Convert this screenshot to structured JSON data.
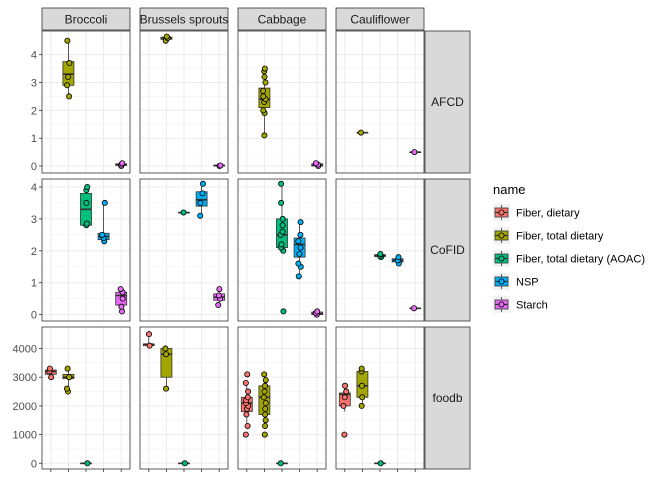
{
  "chart_data": {
    "type": "boxplot",
    "columns": [
      "Broccoli",
      "Brussels sprouts",
      "Cabbage",
      "Cauliflower"
    ],
    "rows": [
      "AFCD",
      "CoFID",
      "foodb"
    ],
    "categories": [
      "Fiber, dietary",
      "Fiber, total dietary",
      "Fiber, total dietary (AOAC)",
      "NSP",
      "Starch"
    ],
    "colors": {
      "Fiber, dietary": "#F8766D",
      "Fiber, total dietary": "#A3A500",
      "Fiber, total dietary (AOAC)": "#00BF7D",
      "NSP": "#00B0F6",
      "Starch": "#E76BF3"
    },
    "scales": "free_y",
    "grid": "on",
    "legend_position": "right",
    "legend": {
      "title": "name",
      "entries": [
        "Fiber, dietary",
        "Fiber, total dietary",
        "Fiber, total dietary (AOAC)",
        "NSP",
        "Starch"
      ]
    },
    "row_axes": {
      "AFCD": {
        "ylim": [
          -0.25,
          4.85
        ],
        "ticks": [
          "0",
          "1",
          "2",
          "3",
          "4"
        ]
      },
      "CoFID": {
        "ylim": [
          -0.2,
          4.25
        ],
        "ticks": [
          "0",
          "1",
          "2",
          "3",
          "4"
        ]
      },
      "foodb": {
        "ylim": [
          -200,
          4750
        ],
        "ticks": [
          "0",
          "1000",
          "2000",
          "3000",
          "4000"
        ]
      }
    },
    "groups": [
      {
        "row": "AFCD",
        "col": "Broccoli",
        "category": "Fiber, total dietary",
        "stats": [
          2.5,
          2.9,
          3.3,
          3.75,
          4.5
        ],
        "points": [
          2.5,
          2.9,
          3.2,
          3.7,
          4.5
        ]
      },
      {
        "row": "AFCD",
        "col": "Broccoli",
        "category": "Starch",
        "stats": [
          0.0,
          0.02,
          0.05,
          0.08,
          0.12
        ],
        "points": [
          0.0,
          0.05,
          0.1
        ]
      },
      {
        "row": "AFCD",
        "col": "Brussels sprouts",
        "category": "Fiber, total dietary",
        "stats": [
          4.5,
          4.55,
          4.6,
          4.63,
          4.65
        ],
        "points": [
          4.5,
          4.6,
          4.65
        ]
      },
      {
        "row": "AFCD",
        "col": "Brussels sprouts",
        "category": "Starch",
        "stats": [
          0.0,
          0.0,
          0.02,
          0.03,
          0.04
        ],
        "points": [
          0.0,
          0.02
        ]
      },
      {
        "row": "AFCD",
        "col": "Cabbage",
        "category": "Fiber, total dietary",
        "stats": [
          1.1,
          2.1,
          2.4,
          2.8,
          3.5
        ],
        "points": [
          1.1,
          1.9,
          2.0,
          2.3,
          2.4,
          2.5,
          2.7,
          3.0,
          3.2,
          3.4,
          3.5
        ]
      },
      {
        "row": "AFCD",
        "col": "Cabbage",
        "category": "Starch",
        "stats": [
          0.0,
          0.0,
          0.03,
          0.08,
          0.12
        ],
        "points": [
          0.0,
          0.05,
          0.1
        ]
      },
      {
        "row": "AFCD",
        "col": "Cauliflower",
        "category": "Fiber, total dietary",
        "stats": [
          1.2,
          1.2,
          1.2,
          1.2,
          1.2
        ],
        "points": [
          1.2
        ]
      },
      {
        "row": "AFCD",
        "col": "Cauliflower",
        "category": "Starch",
        "stats": [
          0.5,
          0.5,
          0.5,
          0.5,
          0.5
        ],
        "points": [
          0.5
        ]
      },
      {
        "row": "CoFID",
        "col": "Broccoli",
        "category": "Fiber, total dietary (AOAC)",
        "stats": [
          2.8,
          2.8,
          3.3,
          3.8,
          4.0
        ],
        "points": [
          2.8,
          2.85,
          3.5,
          3.9,
          4.0
        ]
      },
      {
        "row": "CoFID",
        "col": "Broccoli",
        "category": "NSP",
        "stats": [
          2.3,
          2.35,
          2.45,
          2.55,
          3.5
        ],
        "points": [
          2.3,
          2.4,
          2.5,
          3.5
        ]
      },
      {
        "row": "CoFID",
        "col": "Broccoli",
        "category": "Starch",
        "stats": [
          0.1,
          0.3,
          0.6,
          0.7,
          0.8
        ],
        "points": [
          0.1,
          0.25,
          0.5,
          0.7,
          0.8
        ]
      },
      {
        "row": "CoFID",
        "col": "Brussels sprouts",
        "category": "Fiber, total dietary (AOAC)",
        "stats": [
          3.2,
          3.2,
          3.2,
          3.2,
          3.2
        ],
        "points": [
          3.2
        ]
      },
      {
        "row": "CoFID",
        "col": "Brussels sprouts",
        "category": "NSP",
        "stats": [
          3.1,
          3.4,
          3.6,
          3.85,
          4.1
        ],
        "points": [
          3.1,
          3.5,
          3.8,
          4.1
        ]
      },
      {
        "row": "CoFID",
        "col": "Brussels sprouts",
        "category": "Starch",
        "stats": [
          0.3,
          0.45,
          0.55,
          0.65,
          0.8
        ],
        "points": [
          0.3,
          0.5,
          0.6,
          0.8
        ]
      },
      {
        "row": "CoFID",
        "col": "Cabbage",
        "category": "Fiber, total dietary (AOAC)",
        "stats": [
          2.0,
          2.1,
          2.5,
          3.0,
          4.1
        ],
        "points": [
          0.1,
          2.0,
          2.1,
          2.2,
          2.5,
          2.6,
          2.8,
          3.0,
          3.5,
          4.1
        ]
      },
      {
        "row": "CoFID",
        "col": "Cabbage",
        "category": "NSP",
        "stats": [
          1.2,
          1.8,
          2.2,
          2.4,
          2.9
        ],
        "points": [
          1.2,
          1.5,
          1.6,
          1.9,
          2.1,
          2.3,
          2.5,
          2.9
        ]
      },
      {
        "row": "CoFID",
        "col": "Cabbage",
        "category": "Starch",
        "stats": [
          0.0,
          0.0,
          0.03,
          0.08,
          0.1
        ],
        "points": [
          0.0,
          0.05,
          0.1
        ]
      },
      {
        "row": "CoFID",
        "col": "Cauliflower",
        "category": "Fiber, total dietary (AOAC)",
        "stats": [
          1.8,
          1.82,
          1.85,
          1.88,
          1.9
        ],
        "points": [
          1.8,
          1.85,
          1.9
        ]
      },
      {
        "row": "CoFID",
        "col": "Cauliflower",
        "category": "NSP",
        "stats": [
          1.6,
          1.65,
          1.7,
          1.75,
          1.8
        ],
        "points": [
          1.6,
          1.7,
          1.8
        ]
      },
      {
        "row": "CoFID",
        "col": "Cauliflower",
        "category": "Starch",
        "stats": [
          0.2,
          0.2,
          0.2,
          0.2,
          0.2
        ],
        "points": [
          0.2
        ]
      },
      {
        "row": "foodb",
        "col": "Broccoli",
        "category": "Fiber, dietary",
        "stats": [
          3000,
          3100,
          3200,
          3250,
          3300
        ],
        "points": [
          3000,
          3200,
          3300
        ]
      },
      {
        "row": "foodb",
        "col": "Broccoli",
        "category": "Fiber, total dietary",
        "stats": [
          2500,
          2950,
          3000,
          3100,
          3300
        ],
        "points": [
          2500,
          2600,
          3000,
          3300
        ]
      },
      {
        "row": "foodb",
        "col": "Broccoli",
        "category": "Fiber, total dietary (AOAC)",
        "stats": [
          0,
          0,
          0,
          0,
          0
        ],
        "points": [
          0
        ]
      },
      {
        "row": "foodb",
        "col": "Brussels sprouts",
        "category": "Fiber, dietary",
        "stats": [
          4100,
          4100,
          4150,
          4150,
          4500
        ],
        "points": [
          4100,
          4500
        ]
      },
      {
        "row": "foodb",
        "col": "Brussels sprouts",
        "category": "Fiber, total dietary",
        "stats": [
          2600,
          3000,
          3800,
          4000,
          4100
        ],
        "points": [
          2600,
          3800,
          4000
        ]
      },
      {
        "row": "foodb",
        "col": "Brussels sprouts",
        "category": "Fiber, total dietary (AOAC)",
        "stats": [
          0,
          0,
          0,
          0,
          0
        ],
        "points": [
          0
        ]
      },
      {
        "row": "foodb",
        "col": "Cabbage",
        "category": "Fiber, dietary",
        "stats": [
          1300,
          1800,
          2100,
          2300,
          2800
        ],
        "points": [
          1000,
          1300,
          1700,
          1900,
          2000,
          2100,
          2200,
          2300,
          2500,
          2800,
          3100
        ]
      },
      {
        "row": "foodb",
        "col": "Cabbage",
        "category": "Fiber, total dietary",
        "stats": [
          1300,
          1700,
          2300,
          2700,
          3100
        ],
        "points": [
          1000,
          1300,
          1500,
          1700,
          1900,
          2100,
          2300,
          2500,
          2700,
          2900,
          3100
        ]
      },
      {
        "row": "foodb",
        "col": "Cabbage",
        "category": "Fiber, total dietary (AOAC)",
        "stats": [
          0,
          0,
          0,
          0,
          0
        ],
        "points": [
          0
        ]
      },
      {
        "row": "foodb",
        "col": "Cauliflower",
        "category": "Fiber, dietary",
        "stats": [
          1800,
          2000,
          2400,
          2450,
          2700
        ],
        "points": [
          1000,
          2000,
          2300,
          2500,
          2700
        ]
      },
      {
        "row": "foodb",
        "col": "Cauliflower",
        "category": "Fiber, total dietary",
        "stats": [
          2000,
          2300,
          2700,
          3200,
          3300
        ],
        "points": [
          2000,
          2300,
          2700,
          3200,
          3300
        ]
      },
      {
        "row": "foodb",
        "col": "Cauliflower",
        "category": "Fiber, total dietary (AOAC)",
        "stats": [
          0,
          0,
          0,
          0,
          0
        ],
        "points": [
          0
        ]
      }
    ]
  }
}
